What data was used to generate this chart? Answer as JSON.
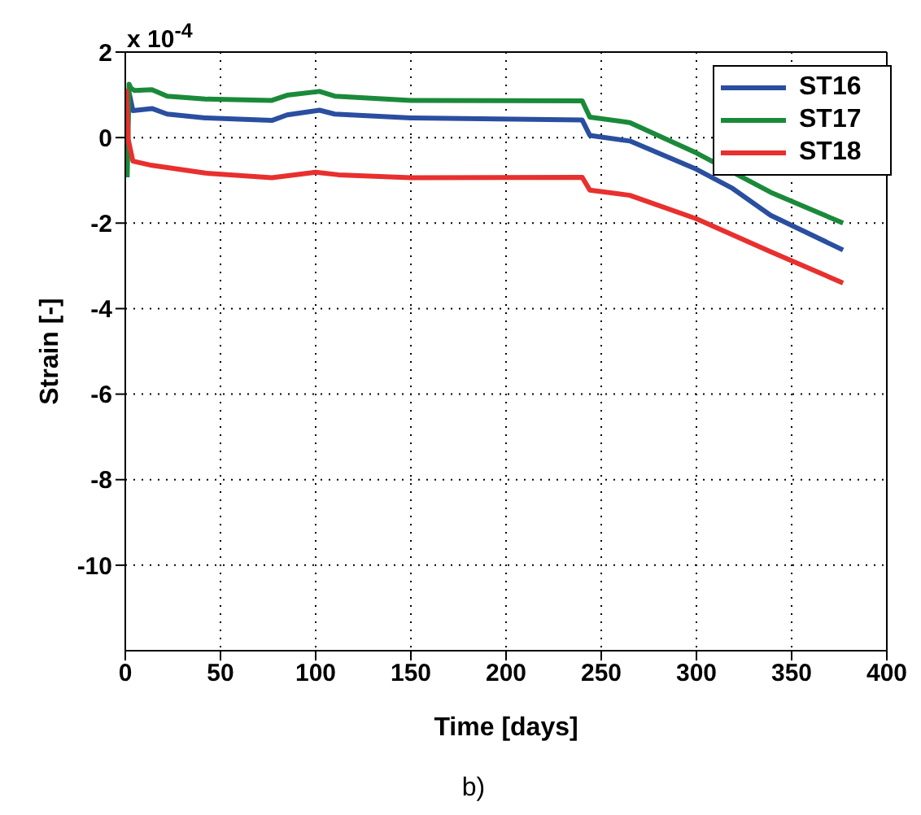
{
  "chart_data": {
    "type": "line",
    "xlabel": "Time [days]",
    "ylabel": "Strain [-]",
    "annotations": [
      "x 10$^{-4}$",
      "b)"
    ],
    "xlim": [
      0,
      400
    ],
    "xticks": [
      0,
      50,
      100,
      150,
      200,
      250,
      300,
      350,
      400
    ],
    "ylim": [
      -12,
      2
    ],
    "yticks": [
      -10,
      -8,
      -6,
      -4,
      -2,
      0,
      2
    ],
    "grid": true,
    "legend": "top right",
    "series": [
      {
        "name": "ST16",
        "color": "#2a4ea0",
        "x": [
          2,
          4,
          14,
          22,
          42,
          77,
          85,
          102,
          110,
          150,
          240,
          244,
          265,
          300,
          319,
          339,
          377
        ],
        "values": [
          1.05,
          0.63,
          0.68,
          0.55,
          0.46,
          0.4,
          0.53,
          0.64,
          0.55,
          0.46,
          0.41,
          0.05,
          -0.08,
          -0.74,
          -1.19,
          -1.82,
          -2.63
        ]
      },
      {
        "name": "ST17",
        "color": "#1a8a3a",
        "x": [
          1,
          2,
          3,
          5,
          14,
          22,
          42,
          77,
          85,
          102,
          110,
          150,
          240,
          244,
          265,
          300,
          339,
          377
        ],
        "values": [
          -0.93,
          1.25,
          1.15,
          1.1,
          1.12,
          0.97,
          0.9,
          0.87,
          0.99,
          1.08,
          0.97,
          0.87,
          0.86,
          0.48,
          0.35,
          -0.36,
          -1.28,
          -2.0
        ]
      },
      {
        "name": "ST18",
        "color": "#e8302e",
        "x": [
          0.5,
          1.5,
          4,
          14,
          42,
          77,
          100,
          112,
          150,
          240,
          244,
          265,
          300,
          339,
          377
        ],
        "values": [
          1.14,
          -0.04,
          -0.55,
          -0.65,
          -0.83,
          -0.94,
          -0.81,
          -0.87,
          -0.94,
          -0.93,
          -1.23,
          -1.35,
          -1.9,
          -2.67,
          -3.4
        ]
      }
    ]
  }
}
